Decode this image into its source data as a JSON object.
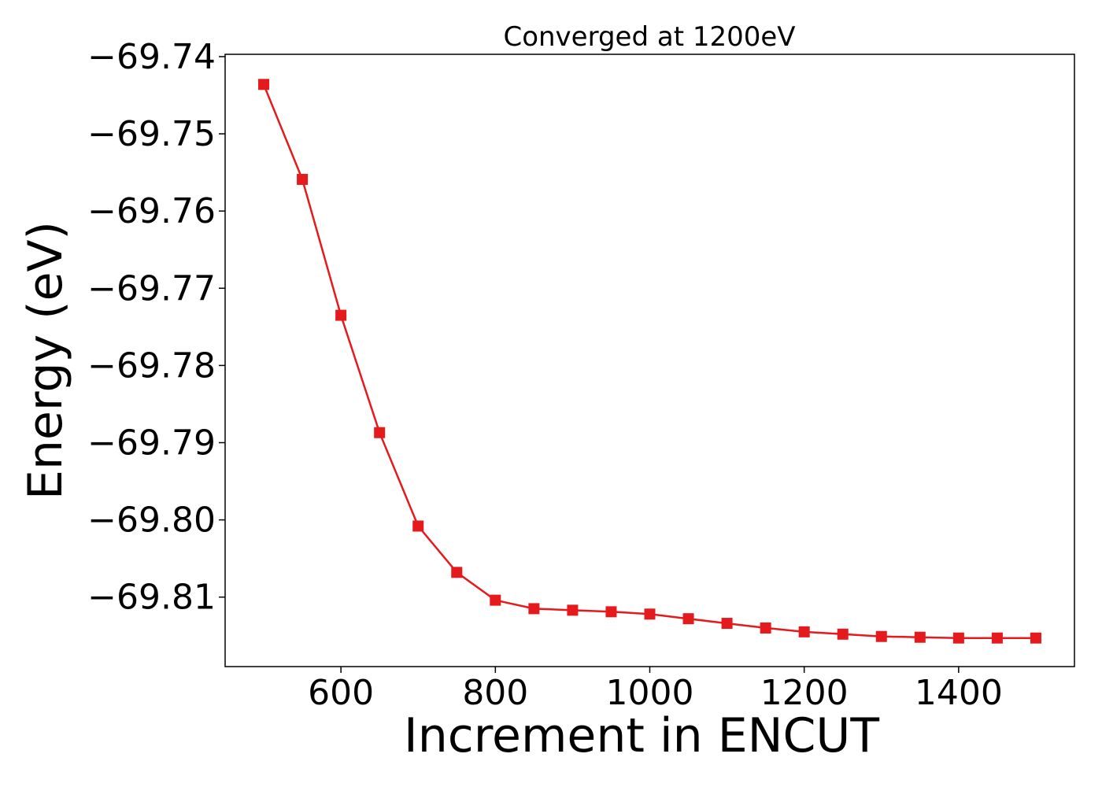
{
  "chart_data": {
    "type": "line",
    "title": "Converged at 1200eV",
    "xlabel": "Increment in ENCUT",
    "ylabel": "Energy (eV)",
    "xlim": [
      450,
      1550
    ],
    "ylim": [
      -69.819,
      -69.7397
    ],
    "x_ticks": [
      600,
      800,
      1000,
      1200,
      1400
    ],
    "y_ticks": [
      -69.74,
      -69.75,
      -69.76,
      -69.77,
      -69.78,
      -69.79,
      -69.8,
      -69.81
    ],
    "y_tick_labels": [
      "−69.74",
      "−69.75",
      "−69.76",
      "−69.77",
      "−69.78",
      "−69.79",
      "−69.80",
      "−69.81"
    ],
    "grid": false,
    "series": [
      {
        "color": "#e41a1c",
        "marker": "square",
        "x": [
          500,
          550,
          600,
          650,
          700,
          750,
          800,
          850,
          900,
          950,
          1000,
          1050,
          1100,
          1150,
          1200,
          1250,
          1300,
          1350,
          1400,
          1450,
          1500
        ],
        "y": [
          -69.7436,
          -69.7559,
          -69.7735,
          -69.7887,
          -69.8008,
          -69.8068,
          -69.8104,
          -69.8115,
          -69.8117,
          -69.8119,
          -69.8122,
          -69.8128,
          -69.8134,
          -69.814,
          -69.8145,
          -69.8148,
          -69.8151,
          -69.8152,
          -69.8153,
          -69.8153,
          -69.8153
        ]
      }
    ]
  }
}
